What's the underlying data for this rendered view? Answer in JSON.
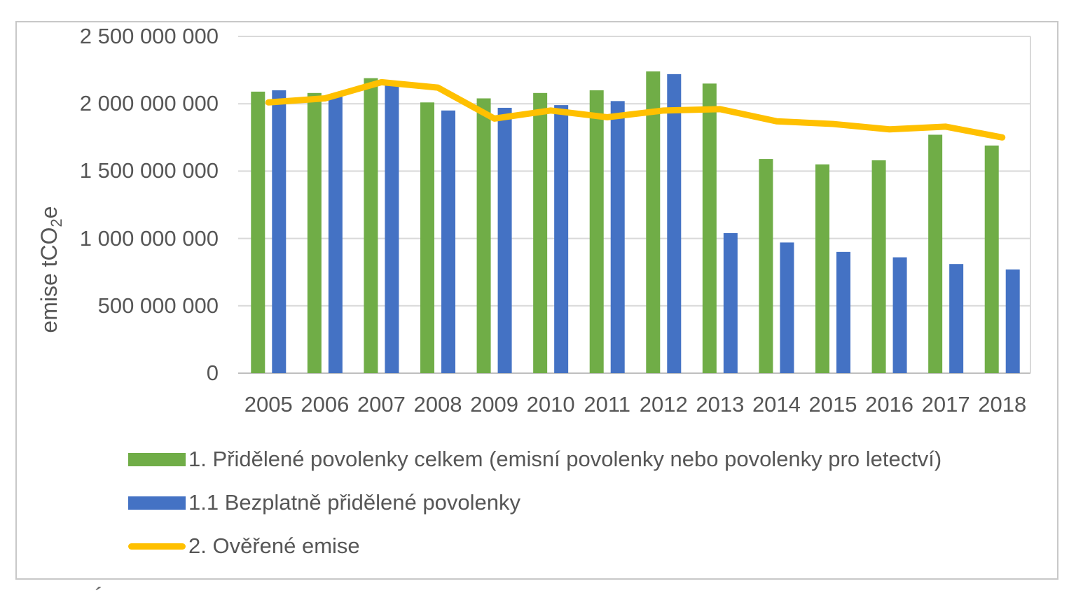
{
  "chart_data": {
    "type": "bar",
    "title": "",
    "categories": [
      "2005",
      "2006",
      "2007",
      "2008",
      "2009",
      "2010",
      "2011",
      "2012",
      "2013",
      "2014",
      "2015",
      "2016",
      "2017",
      "2018"
    ],
    "series": [
      {
        "name": "1. Přidělené povolenky celkem (emisní povolenky nebo povolenky pro letectví)",
        "type": "bar",
        "color": "#70AD47",
        "values": [
          2090000000,
          2080000000,
          2190000000,
          2010000000,
          2040000000,
          2080000000,
          2100000000,
          2240000000,
          2150000000,
          1590000000,
          1550000000,
          1580000000,
          1770000000,
          1690000000
        ]
      },
      {
        "name": "1.1 Bezplatně přidělené povolenky",
        "type": "bar",
        "color": "#4472C4",
        "values": [
          2100000000,
          2060000000,
          2140000000,
          1950000000,
          1970000000,
          1990000000,
          2020000000,
          2220000000,
          1040000000,
          970000000,
          900000000,
          860000000,
          810000000,
          770000000
        ]
      },
      {
        "name": "2. Ověřené emise",
        "type": "line",
        "color": "#FFC000",
        "values": [
          2010000000,
          2040000000,
          2160000000,
          2120000000,
          1890000000,
          1950000000,
          1900000000,
          1950000000,
          1960000000,
          1870000000,
          1850000000,
          1810000000,
          1830000000,
          1750000000
        ]
      }
    ],
    "xlabel": "",
    "ylabel": {
      "prefix": "emise tCO",
      "sub": "2",
      "suffix": "e"
    },
    "ylim": [
      0,
      2500000000
    ],
    "yticks": [
      {
        "value": 2500000000,
        "label": "2 500 000 000"
      },
      {
        "value": 2000000000,
        "label": "2 000 000 000"
      },
      {
        "value": 1500000000,
        "label": "1 500 000 000"
      },
      {
        "value": 1000000000,
        "label": "1 000 000 000"
      },
      {
        "value": 500000000,
        "label": "500 000 000"
      },
      {
        "value": 0,
        "label": "0"
      }
    ],
    "grid": true,
    "legend_position": "bottom-left"
  },
  "colors": {
    "frame_border": "#c8c8c8",
    "gridline": "#D9D9D9",
    "baseline": "#BFBFBF",
    "text": "#565656"
  },
  "decor": {
    "cropped_caption_artifact": "´"
  }
}
